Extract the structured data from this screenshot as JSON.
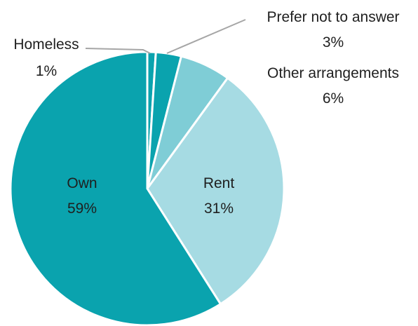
{
  "chart_data": {
    "type": "pie",
    "slices": [
      {
        "label": "Own",
        "percent_text": "59%",
        "value": 59,
        "color": "#0aa3ae"
      },
      {
        "label": "Homeless",
        "percent_text": "1%",
        "value": 1,
        "color": "#0aa3ae"
      },
      {
        "label": "Prefer not to answer",
        "percent_text": "3%",
        "value": 3,
        "color": "#0aa3ae"
      },
      {
        "label": "Other arrangements",
        "percent_text": "6%",
        "value": 6,
        "color": "#7fcdd6"
      },
      {
        "label": "Rent",
        "percent_text": "31%",
        "value": 31,
        "color": "#a6dbe3"
      }
    ]
  }
}
